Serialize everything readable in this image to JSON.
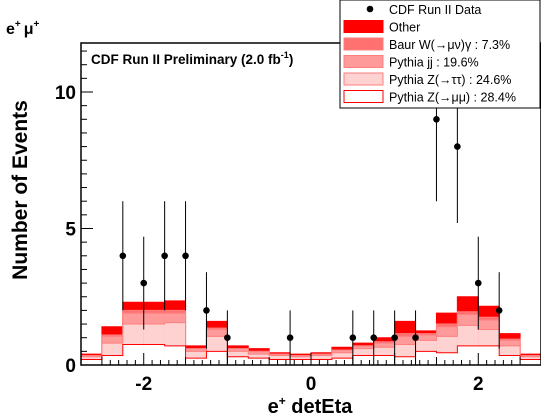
{
  "chart_data": {
    "type": "bar",
    "stacked": true,
    "title": "e⁺ μ⁺",
    "title_main": "e",
    "title_sup1": "+",
    "title_mu": "μ",
    "title_sup2": "+",
    "annotation": {
      "text": "CDF Run II Preliminary (2.0 fb",
      "sup": "-1",
      "close": ")"
    },
    "xlabel": "e⁺ detEta",
    "xlabel_main": "e",
    "xlabel_sup": "+",
    "xlabel_rest": " detEta",
    "ylabel": "Number of Events",
    "xlim": [
      -2.75,
      2.75
    ],
    "ylim": [
      0,
      12
    ],
    "xticks": [
      -2,
      0,
      2
    ],
    "xtick_labels": [
      "-2",
      "0",
      "2"
    ],
    "yticks": [
      0,
      5,
      10
    ],
    "ytick_labels": [
      "0",
      "5",
      "10"
    ],
    "bin_edges": [
      -2.75,
      -2.5,
      -2.25,
      -2.0,
      -1.75,
      -1.5,
      -1.25,
      -1.0,
      -0.75,
      -0.5,
      -0.25,
      0.0,
      0.25,
      0.5,
      0.75,
      1.0,
      1.25,
      1.5,
      1.75,
      2.0,
      2.25,
      2.5,
      2.75
    ],
    "series": [
      {
        "name": "Pythia Z(→μμ) : 28.4%",
        "color": "#ffffff",
        "edge": "#ff0000",
        "values": [
          0.2,
          0.35,
          0.75,
          0.75,
          0.7,
          0.25,
          0.5,
          0.3,
          0.25,
          0.2,
          0.2,
          0.2,
          0.25,
          0.35,
          0.35,
          0.3,
          0.5,
          0.45,
          0.7,
          0.7,
          0.35,
          0.2
        ]
      },
      {
        "name": "Pythia Z(→ττ) : 24.6%",
        "color": "#ffd2d2",
        "edge": "#ff7f7f",
        "values": [
          0.1,
          0.45,
          0.75,
          0.75,
          0.85,
          0.25,
          0.55,
          0.2,
          0.15,
          0.15,
          0.1,
          0.15,
          0.2,
          0.25,
          0.3,
          0.45,
          0.4,
          0.6,
          0.75,
          0.6,
          0.35,
          0.1
        ]
      },
      {
        "name": "Pythia jj : 19.6%",
        "color": "#ff9a9a",
        "edge": "#ff7f7f",
        "values": [
          0.05,
          0.25,
          0.4,
          0.4,
          0.35,
          0.1,
          0.25,
          0.1,
          0.1,
          0.05,
          0.05,
          0.05,
          0.1,
          0.1,
          0.15,
          0.3,
          0.2,
          0.35,
          0.4,
          0.35,
          0.2,
          0.05
        ]
      },
      {
        "name": "Baur W(→μν)γ : 7.3%",
        "color": "#ff7070",
        "edge": "#ff7f7f",
        "values": [
          0.0,
          0.05,
          0.1,
          0.1,
          0.1,
          0.0,
          0.05,
          0.0,
          0.0,
          0.0,
          0.0,
          0.0,
          0.0,
          0.0,
          0.05,
          0.1,
          0.05,
          0.1,
          0.1,
          0.1,
          0.05,
          0.0
        ]
      },
      {
        "name": "Other",
        "color": "#ff0000",
        "edge": "#ff0000",
        "values": [
          0.05,
          0.3,
          0.3,
          0.3,
          0.35,
          0.1,
          0.25,
          0.1,
          0.1,
          0.05,
          0.05,
          0.05,
          0.1,
          0.1,
          0.15,
          0.45,
          0.1,
          0.4,
          0.55,
          0.4,
          0.2,
          0.05
        ]
      }
    ],
    "data": {
      "name": "CDF Run II Data",
      "points": [
        {
          "x": -2.25,
          "y": 4,
          "err": [
            2.0,
            2.0
          ]
        },
        {
          "x": -2.0,
          "y": 3,
          "err": [
            1.7,
            1.7
          ]
        },
        {
          "x": -1.75,
          "y": 4,
          "err": [
            2.0,
            2.0
          ]
        },
        {
          "x": -1.5,
          "y": 4,
          "err": [
            2.0,
            2.0
          ]
        },
        {
          "x": -1.25,
          "y": 2,
          "err": [
            1.4,
            1.4
          ]
        },
        {
          "x": -1.0,
          "y": 1,
          "err": [
            1.0,
            1.0
          ]
        },
        {
          "x": -0.25,
          "y": 1,
          "err": [
            1.0,
            1.0
          ]
        },
        {
          "x": 0.5,
          "y": 1,
          "err": [
            1.0,
            1.0
          ]
        },
        {
          "x": 0.75,
          "y": 1,
          "err": [
            1.0,
            1.0
          ]
        },
        {
          "x": 1.0,
          "y": 1,
          "err": [
            1.0,
            1.0
          ]
        },
        {
          "x": 1.25,
          "y": 1,
          "err": [
            1.0,
            1.0
          ]
        },
        {
          "x": 1.5,
          "y": 9,
          "err": [
            3.0,
            3.0
          ]
        },
        {
          "x": 1.75,
          "y": 8,
          "err": [
            2.8,
            2.8
          ]
        },
        {
          "x": 2.0,
          "y": 3,
          "err": [
            1.7,
            1.7
          ]
        },
        {
          "x": 2.25,
          "y": 2,
          "err": [
            1.4,
            1.4
          ]
        }
      ]
    },
    "legend": {
      "placement": "top-right",
      "entries": [
        {
          "label": "CDF Run II Data",
          "kind": "marker",
          "color": "#000000"
        },
        {
          "label": "Other",
          "kind": "fill",
          "color": "#ff0000",
          "edge": "#ff0000"
        },
        {
          "label": "Baur W(→μν)γ : 7.3%",
          "kind": "fill",
          "color": "#ff7070",
          "edge": "#ff7f7f"
        },
        {
          "label": "Pythia jj : 19.6%",
          "kind": "fill",
          "color": "#ff9a9a",
          "edge": "#ff7f7f"
        },
        {
          "label": "Pythia Z(→ττ) : 24.6%",
          "kind": "fill",
          "color": "#ffd2d2",
          "edge": "#ff7f7f"
        },
        {
          "label": "Pythia Z(→μμ) : 28.4%",
          "kind": "fill",
          "color": "#ffffff",
          "edge": "#ff0000"
        }
      ]
    }
  }
}
